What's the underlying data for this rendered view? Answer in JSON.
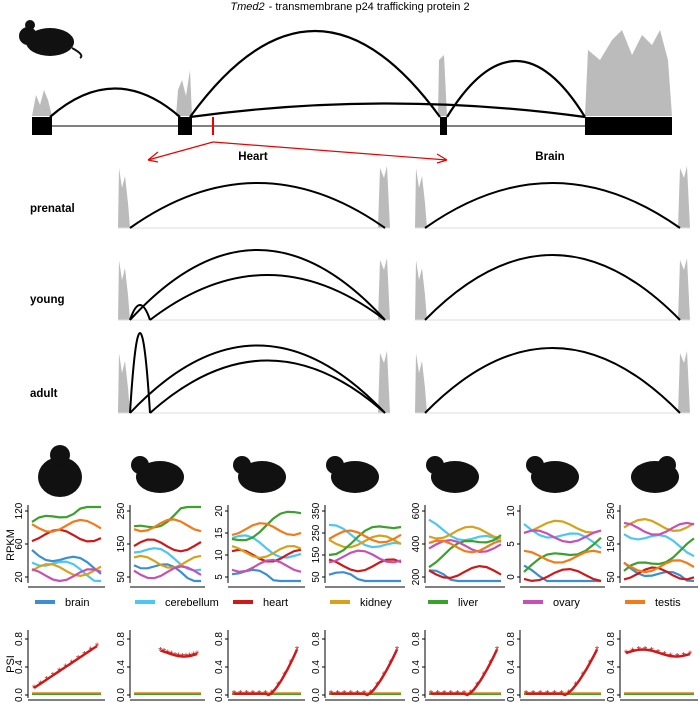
{
  "title": {
    "gene": "Tmed2",
    "description": "- transmembrane p24 trafficking protein 2"
  },
  "conditions": [
    "Heart",
    "Brain"
  ],
  "stages": [
    "prenatal",
    "young",
    "adult"
  ],
  "rpkm": {
    "label": "RPKM",
    "panels": [
      [
        "20",
        "60",
        "120"
      ],
      [
        "50",
        "150",
        "250"
      ],
      [
        "5",
        "10",
        "15",
        "20"
      ],
      [
        "50",
        "150",
        "250",
        "350"
      ],
      [
        "200",
        "400",
        "600"
      ],
      [
        "0",
        "5",
        "10"
      ],
      [
        "50",
        "150",
        "250"
      ]
    ]
  },
  "legend": [
    {
      "name": "brain",
      "color": "#3b8fd0"
    },
    {
      "name": "cerebellum",
      "color": "#4cc7f2"
    },
    {
      "name": "heart",
      "color": "#cc1a1a"
    },
    {
      "name": "kidney",
      "color": "#d6a21a"
    },
    {
      "name": "liver",
      "color": "#3ba02c"
    },
    {
      "name": "ovary",
      "color": "#c650b5"
    },
    {
      "name": "testis",
      "color": "#f27a18"
    }
  ],
  "psi": {
    "label": "PSI",
    "ticks": [
      "0.0",
      "0.4",
      "0.8"
    ]
  }
}
